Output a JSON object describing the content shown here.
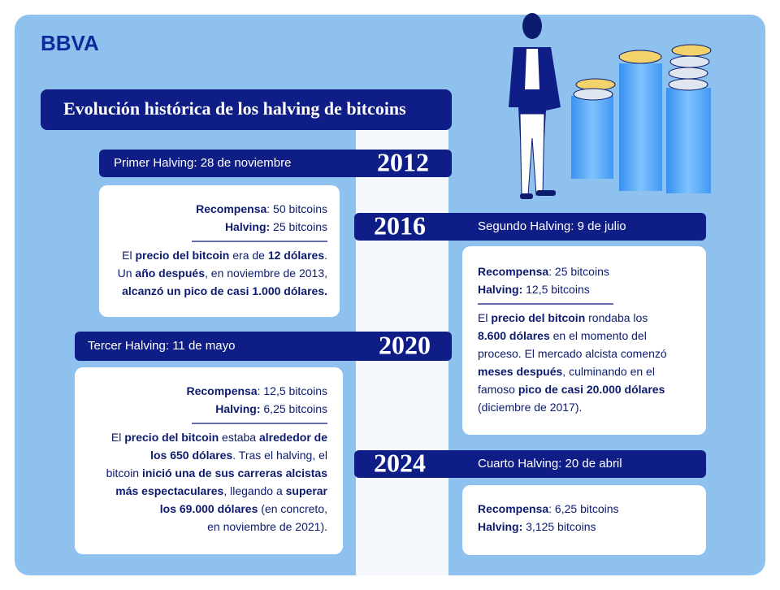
{
  "logo": "BBVA",
  "title": "Evolución histórica de los halving de bitcoins",
  "halvings": [
    {
      "year": "2012",
      "label": "Primer Halving: 28 de noviembre",
      "reward": [
        {
          "text": "Recompensa",
          "bold": true
        },
        {
          "text": ": 50 bitcoins",
          "bold": false
        }
      ],
      "halving": [
        {
          "text": "Halving:",
          "bold": true
        },
        {
          "text": " 25 bitcoins",
          "bold": false
        }
      ],
      "description": [
        [
          {
            "text": "El ",
            "bold": false
          },
          {
            "text": "precio del bitcoin",
            "bold": true
          },
          {
            "text": " era de ",
            "bold": false
          },
          {
            "text": "12 dólares",
            "bold": true
          },
          {
            "text": ".",
            "bold": false
          }
        ],
        [
          {
            "text": "Un ",
            "bold": false
          },
          {
            "text": "año después",
            "bold": true
          },
          {
            "text": ", en noviembre de 2013,",
            "bold": false
          }
        ],
        [
          {
            "text": "alcanzó un pico de casi 1.000 dólares.",
            "bold": true
          }
        ]
      ]
    },
    {
      "year": "2016",
      "label": "Segundo Halving: 9 de julio",
      "reward": [
        {
          "text": "Recompensa",
          "bold": true
        },
        {
          "text": ": 25 bitcoins",
          "bold": false
        }
      ],
      "halving": [
        {
          "text": "Halving:",
          "bold": true
        },
        {
          "text": " 12,5 bitcoins",
          "bold": false
        }
      ],
      "description": [
        [
          {
            "text": "El ",
            "bold": false
          },
          {
            "text": "precio del bitcoin",
            "bold": true
          },
          {
            "text": " rondaba los",
            "bold": false
          }
        ],
        [
          {
            "text": "8.600 dólares",
            "bold": true
          },
          {
            "text": " en el momento del",
            "bold": false
          }
        ],
        [
          {
            "text": "proceso. El mercado alcista comenzó",
            "bold": false
          }
        ],
        [
          {
            "text": "meses después",
            "bold": true
          },
          {
            "text": ", culminando en el",
            "bold": false
          }
        ],
        [
          {
            "text": "famoso ",
            "bold": false
          },
          {
            "text": "pico de casi 20.000 dólares",
            "bold": true
          }
        ],
        [
          {
            "text": "(diciembre de 2017).",
            "bold": false
          }
        ]
      ]
    },
    {
      "year": "2020",
      "label": "Tercer Halving: 11 de mayo",
      "reward": [
        {
          "text": "Recompensa",
          "bold": true
        },
        {
          "text": ": 12,5 bitcoins",
          "bold": false
        }
      ],
      "halving": [
        {
          "text": "Halving:",
          "bold": true
        },
        {
          "text": " 6,25 bitcoins",
          "bold": false
        }
      ],
      "description": [
        [
          {
            "text": "El ",
            "bold": false
          },
          {
            "text": "precio del bitcoin",
            "bold": true
          },
          {
            "text": " estaba ",
            "bold": false
          },
          {
            "text": "alrededor de",
            "bold": true
          }
        ],
        [
          {
            "text": "los 650 dólares",
            "bold": true
          },
          {
            "text": ". Tras el halving, el",
            "bold": false
          }
        ],
        [
          {
            "text": "bitcoin ",
            "bold": false
          },
          {
            "text": "inició una de sus carreras alcistas",
            "bold": true
          }
        ],
        [
          {
            "text": "más espectaculares",
            "bold": true
          },
          {
            "text": ", llegando a ",
            "bold": false
          },
          {
            "text": "superar",
            "bold": true
          }
        ],
        [
          {
            "text": "los 69.000 dólares",
            "bold": true
          },
          {
            "text": " (en concreto,",
            "bold": false
          }
        ],
        [
          {
            "text": "en noviembre de 2021).",
            "bold": false
          }
        ]
      ]
    },
    {
      "year": "2024",
      "label": "Cuarto Halving: 20 de abril",
      "reward": [
        {
          "text": "Recompensa",
          "bold": true
        },
        {
          "text": ": 6,25 bitcoins",
          "bold": false
        }
      ],
      "halving": [
        {
          "text": "Halving:",
          "bold": true
        },
        {
          "text": " 3,125 bitcoins",
          "bold": false
        }
      ],
      "description": []
    }
  ]
}
